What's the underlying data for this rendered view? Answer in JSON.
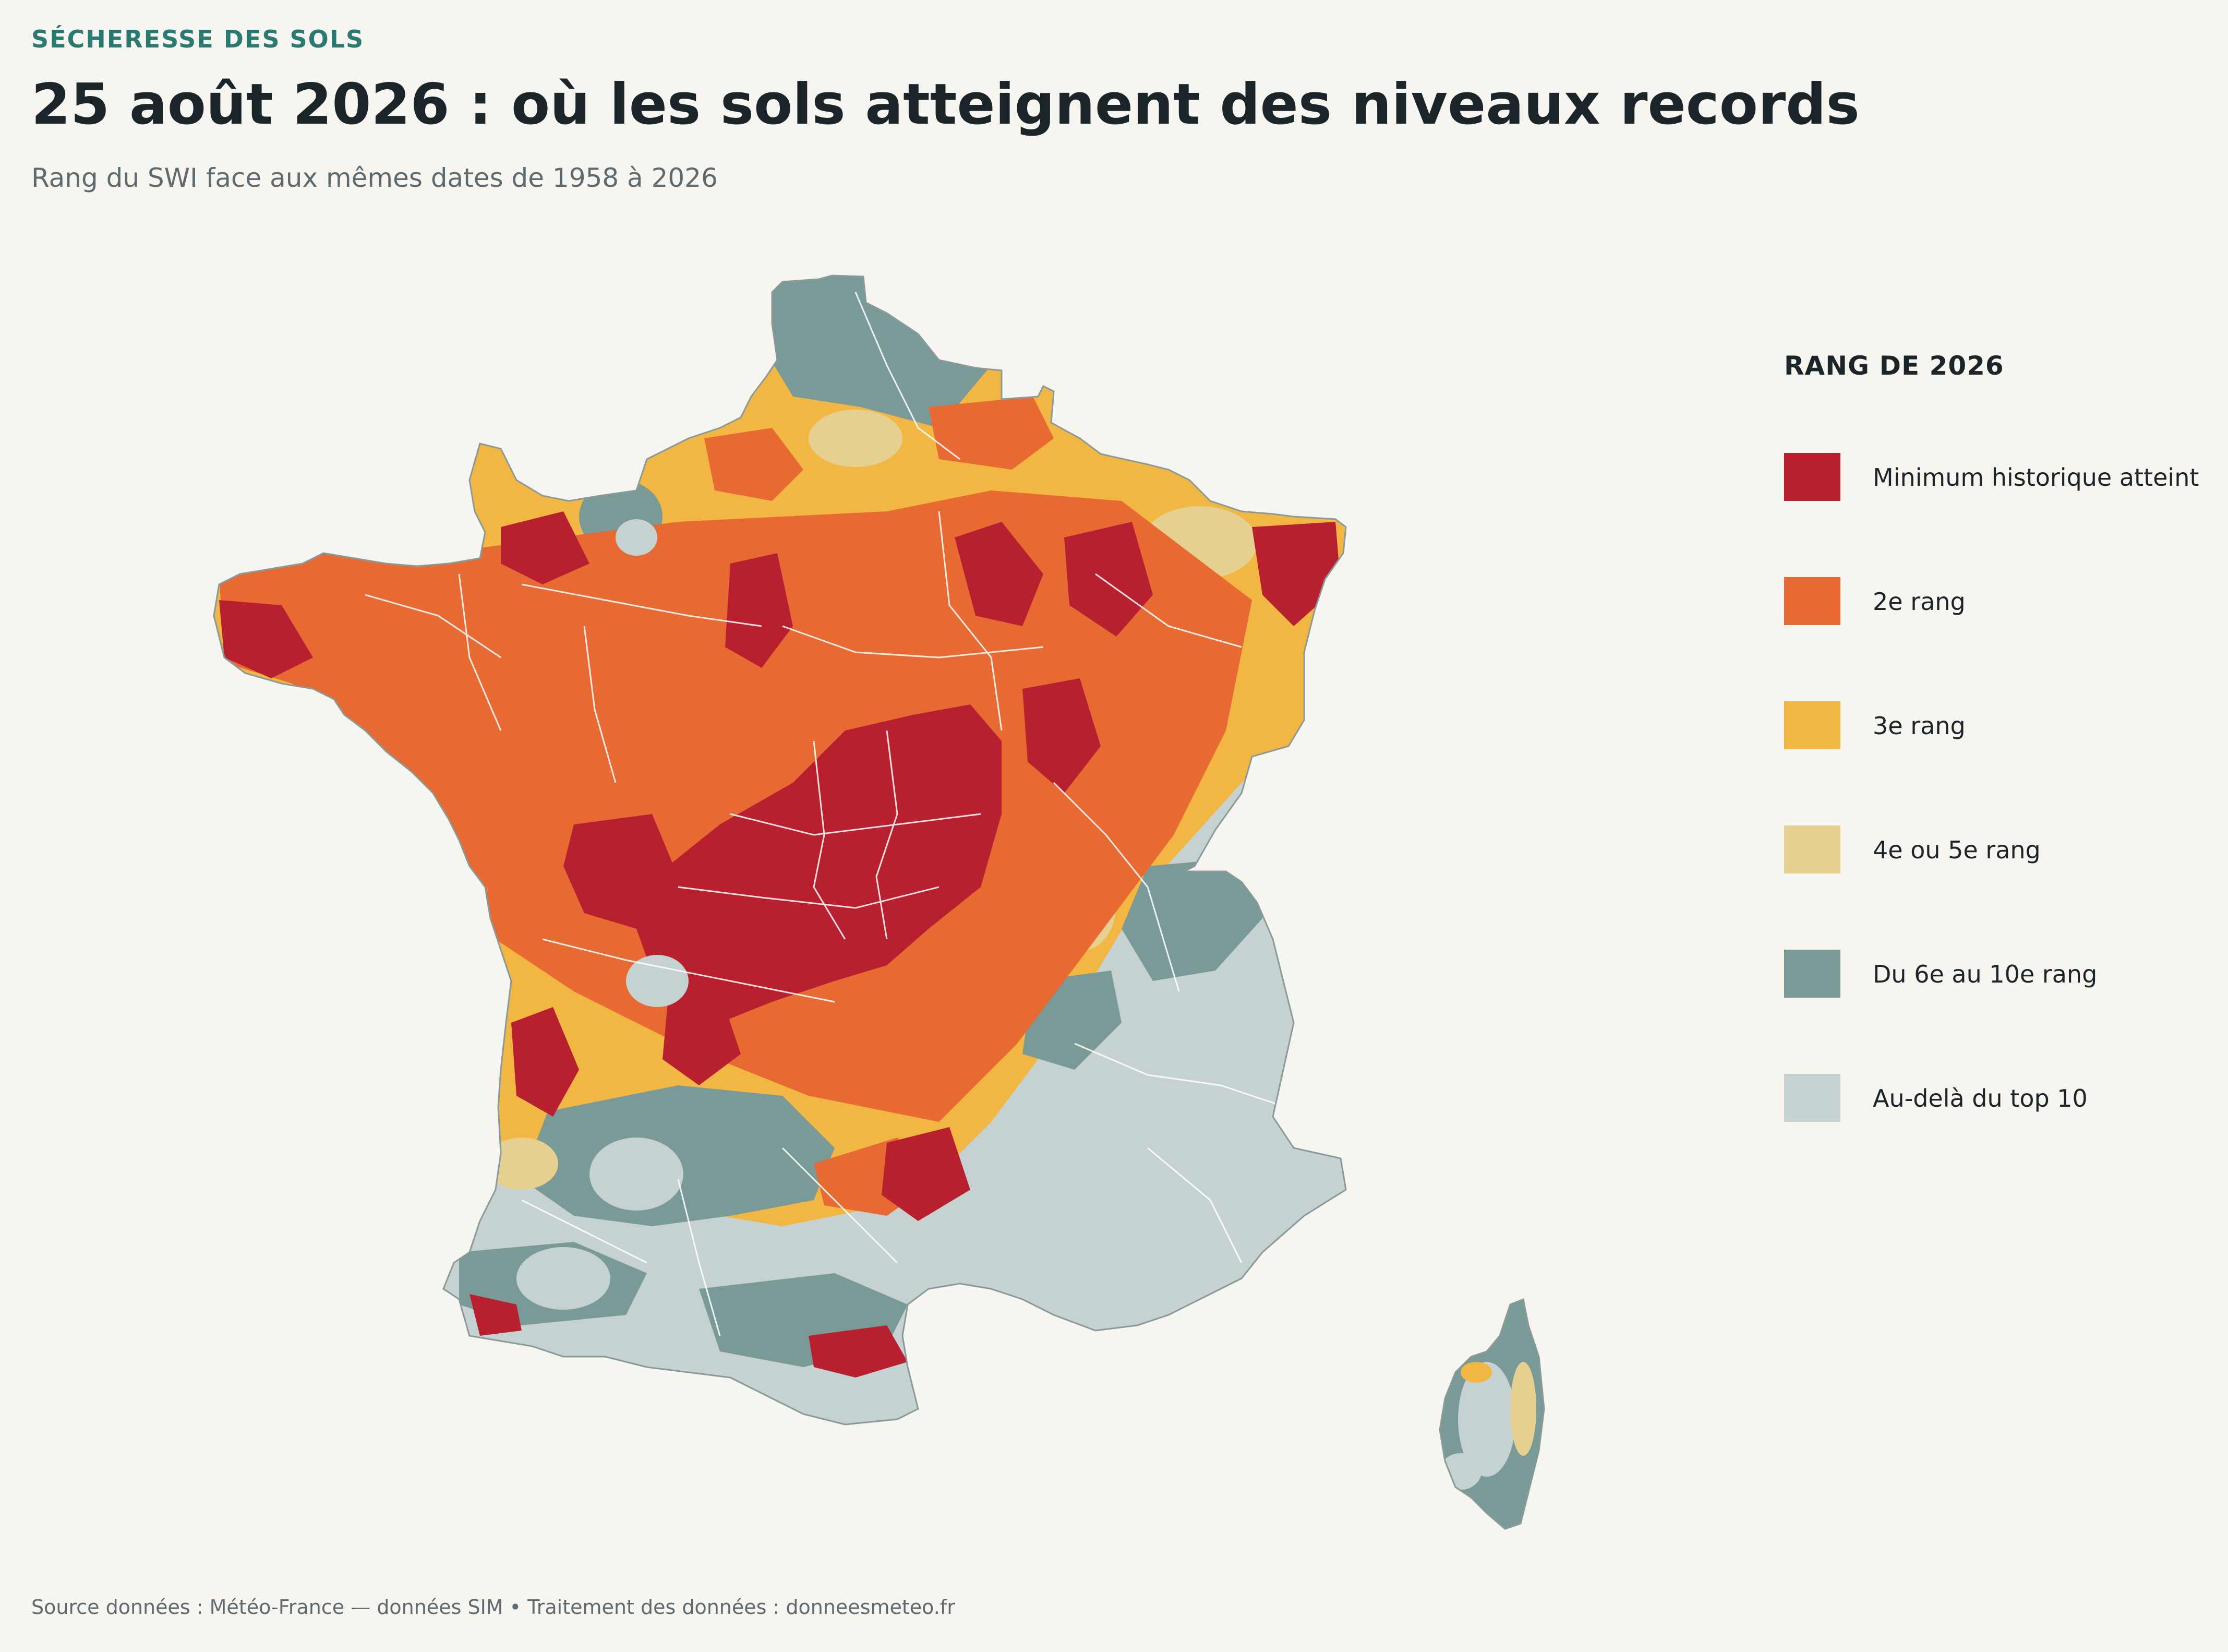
{
  "header": {
    "kicker": "SÉCHERESSE DES SOLS",
    "title": "25 août 2026 : où les sols atteignent des niveaux records",
    "subtitle": "Rang du SWI face aux mêmes dates de 1958 à 2026"
  },
  "legend": {
    "title": "RANG DE 2026",
    "items": [
      {
        "label": "Minimum historique atteint",
        "color": "#b8202f"
      },
      {
        "label": "2e rang",
        "color": "#e86a33"
      },
      {
        "label": "3e rang",
        "color": "#f2b642"
      },
      {
        "label": "4e ou 5e rang",
        "color": "#e6d08f"
      },
      {
        "label": "Du 6e au 10e rang",
        "color": "#799a97"
      },
      {
        "label": "Au-delà du top 10",
        "color": "#c6d2d1"
      }
    ]
  },
  "map": {
    "regions": [
      "France métropolitaine",
      "Corse"
    ],
    "boundary_color": "#ffffff"
  },
  "footer": {
    "source": "Source données : Météo-France — données SIM  •  Traitement des données : donneesmeteo.fr"
  }
}
